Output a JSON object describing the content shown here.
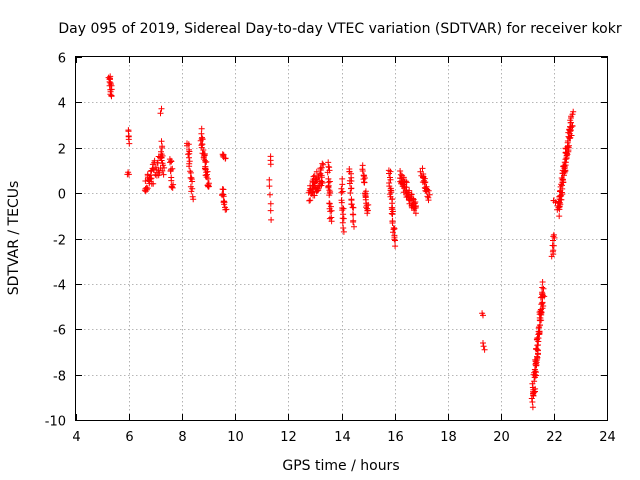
{
  "chart_data": {
    "type": "scatter",
    "title": "Day 095 of 2019, Sidereal Day-to-day VTEC variation (SDTVAR) for receiver kokr",
    "xlabel": "GPS time / hours",
    "ylabel": "SDTVAR / TECUs",
    "xlim": [
      4,
      24
    ],
    "ylim": [
      -10,
      6
    ],
    "x_ticks": [
      4,
      6,
      8,
      10,
      12,
      14,
      16,
      18,
      20,
      22,
      24
    ],
    "y_ticks": [
      -10,
      -8,
      -6,
      -4,
      -2,
      0,
      2,
      4,
      6
    ],
    "grid": true,
    "marker": "+",
    "color": "#ff0000",
    "series": [
      {
        "name": "SDTVAR",
        "segments": [
          {
            "x0": 5.25,
            "y0": 5.2,
            "x1": 5.3,
            "y1": 4.8,
            "n": 8,
            "spread": 0.15
          },
          {
            "x0": 5.3,
            "y0": 4.8,
            "x1": 5.35,
            "y1": 4.2,
            "n": 8,
            "spread": 0.15
          },
          {
            "x0": 5.95,
            "y0": 2.8,
            "x1": 6.0,
            "y1": 2.2,
            "n": 6,
            "spread": 0.1
          },
          {
            "x0": 5.95,
            "y0": 0.9,
            "x1": 6.0,
            "y1": 0.8,
            "n": 3,
            "spread": 0.05
          },
          {
            "x0": 6.6,
            "y0": 0.2,
            "x1": 7.2,
            "y1": 1.4,
            "n": 45,
            "spread": 0.9
          },
          {
            "x0": 7.2,
            "y0": 3.5,
            "x1": 7.25,
            "y1": 3.7,
            "n": 2,
            "spread": 0.05
          },
          {
            "x0": 7.2,
            "y0": 2.2,
            "x1": 7.3,
            "y1": 0.8,
            "n": 12,
            "spread": 0.2
          },
          {
            "x0": 7.55,
            "y0": 1.6,
            "x1": 7.65,
            "y1": 0.2,
            "n": 14,
            "spread": 0.3
          },
          {
            "x0": 8.2,
            "y0": 2.3,
            "x1": 8.4,
            "y1": -0.1,
            "n": 22,
            "spread": 0.4
          },
          {
            "x0": 8.7,
            "y0": 2.6,
            "x1": 9.0,
            "y1": 0.2,
            "n": 40,
            "spread": 0.5
          },
          {
            "x0": 9.5,
            "y0": 1.7,
            "x1": 9.65,
            "y1": 1.5,
            "n": 6,
            "spread": 0.1
          },
          {
            "x0": 9.5,
            "y0": 0.1,
            "x1": 9.65,
            "y1": -0.7,
            "n": 14,
            "spread": 0.3
          },
          {
            "x0": 11.3,
            "y0": 1.6,
            "x1": 11.35,
            "y1": 1.3,
            "n": 3,
            "spread": 0.1
          },
          {
            "x0": 11.3,
            "y0": 0.6,
            "x1": 11.35,
            "y1": -1.2,
            "n": 6,
            "spread": 0.2
          },
          {
            "x0": 12.8,
            "y0": 0.0,
            "x1": 13.3,
            "y1": 0.9,
            "n": 55,
            "spread": 0.9
          },
          {
            "x0": 13.5,
            "y0": 1.3,
            "x1": 13.6,
            "y1": -1.2,
            "n": 24,
            "spread": 0.3
          },
          {
            "x0": 14.0,
            "y0": 0.5,
            "x1": 14.1,
            "y1": -1.7,
            "n": 16,
            "spread": 0.3
          },
          {
            "x0": 14.3,
            "y0": 1.2,
            "x1": 14.45,
            "y1": -1.4,
            "n": 22,
            "spread": 0.3
          },
          {
            "x0": 14.8,
            "y0": 1.2,
            "x1": 15.0,
            "y1": -1.0,
            "n": 26,
            "spread": 0.3
          },
          {
            "x0": 15.8,
            "y0": 1.0,
            "x1": 16.0,
            "y1": -2.2,
            "n": 34,
            "spread": 0.3
          },
          {
            "x0": 16.2,
            "y0": 0.8,
            "x1": 16.8,
            "y1": -0.8,
            "n": 65,
            "spread": 0.6
          },
          {
            "x0": 17.0,
            "y0": 1.0,
            "x1": 17.3,
            "y1": -0.2,
            "n": 26,
            "spread": 0.4
          },
          {
            "x0": 19.3,
            "y0": -5.3,
            "x1": 19.35,
            "y1": -5.4,
            "n": 2,
            "spread": 0.05
          },
          {
            "x0": 19.3,
            "y0": -6.6,
            "x1": 19.35,
            "y1": -6.9,
            "n": 3,
            "spread": 0.05
          },
          {
            "x0": 21.2,
            "y0": -9.1,
            "x1": 21.6,
            "y1": -4.2,
            "n": 90,
            "spread": 0.9
          },
          {
            "x0": 21.95,
            "y0": -2.8,
            "x1": 22.0,
            "y1": -1.8,
            "n": 10,
            "spread": 0.2
          },
          {
            "x0": 22.0,
            "y0": -0.3,
            "x1": 22.05,
            "y1": -0.4,
            "n": 3,
            "spread": 0.05
          },
          {
            "x0": 22.15,
            "y0": -0.8,
            "x1": 22.7,
            "y1": 3.4,
            "n": 95,
            "spread": 0.7
          }
        ]
      }
    ]
  }
}
